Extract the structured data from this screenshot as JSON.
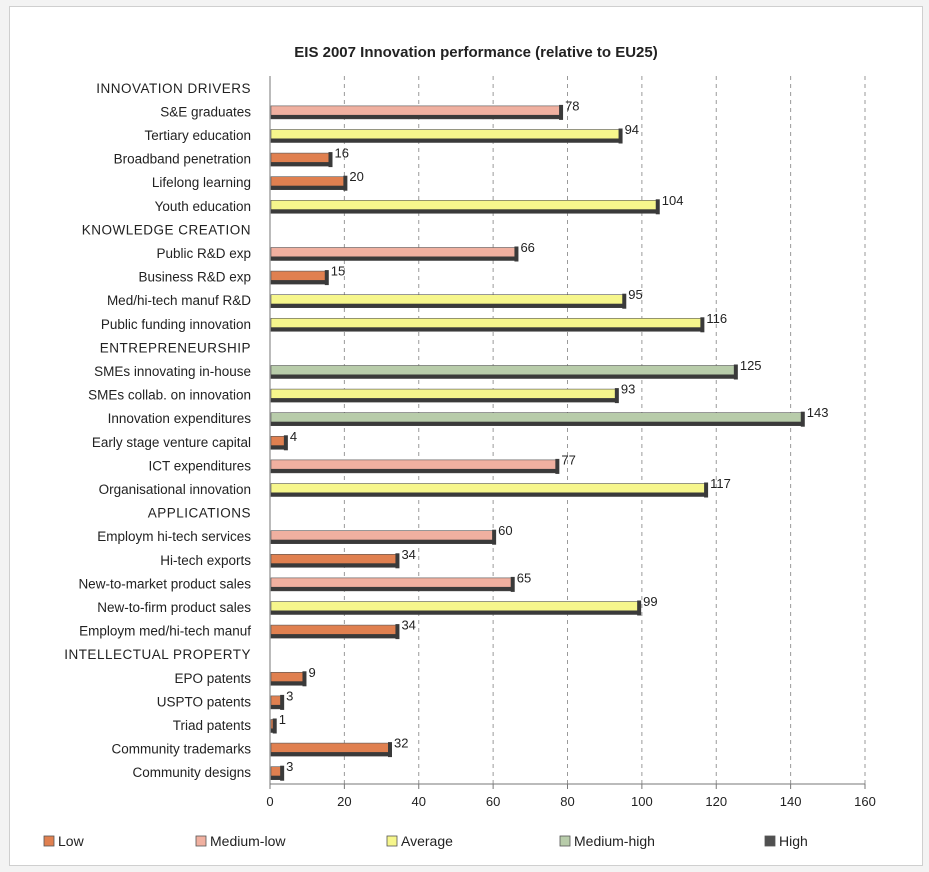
{
  "chart_data": {
    "type": "bar",
    "orientation": "horizontal",
    "title": "EIS 2007 Innovation performance (relative to EU25)",
    "xlim": [
      0,
      160
    ],
    "xticks": [
      0,
      20,
      40,
      60,
      80,
      100,
      120,
      140,
      160
    ],
    "grid": "vertical dashed",
    "legend_placement": "bottom",
    "legend": [
      {
        "key": "low",
        "label": "Low"
      },
      {
        "key": "medium-low",
        "label": "Medium-low"
      },
      {
        "key": "average",
        "label": "Average"
      },
      {
        "key": "medium-high",
        "label": "Medium-high"
      },
      {
        "key": "high",
        "label": "High"
      }
    ],
    "colors": {
      "low": "#e08050",
      "medium-low": "#f0b0a0",
      "average": "#f6f68c",
      "medium-high": "#b8ccaa",
      "high": "#505050"
    },
    "rows": [
      {
        "type": "section",
        "label": "INNOVATION DRIVERS"
      },
      {
        "type": "bar",
        "label": "S&E graduates",
        "value": 78,
        "value_label": "78",
        "level": "medium-low"
      },
      {
        "type": "bar",
        "label": "Tertiary education",
        "value": 94,
        "value_label": "94",
        "level": "average"
      },
      {
        "type": "bar",
        "label": "Broadband penetration",
        "value": 16,
        "value_label": "16",
        "level": "low"
      },
      {
        "type": "bar",
        "label": "Lifelong learning",
        "value": 20,
        "value_label": "20",
        "level": "low"
      },
      {
        "type": "bar",
        "label": "Youth education",
        "value": 104,
        "value_label": "104",
        "level": "average"
      },
      {
        "type": "section",
        "label": "KNOWLEDGE CREATION"
      },
      {
        "type": "bar",
        "label": "Public R&D exp",
        "value": 66,
        "value_label": "66",
        "level": "medium-low"
      },
      {
        "type": "bar",
        "label": "Business R&D exp",
        "value": 15,
        "value_label": "15",
        "level": "low"
      },
      {
        "type": "bar",
        "label": "Med/hi-tech manuf R&D",
        "value": 95,
        "value_label": "95",
        "level": "average"
      },
      {
        "type": "bar",
        "label": "Public funding innovation",
        "value": 116,
        "value_label": "116",
        "level": "average"
      },
      {
        "type": "section",
        "label": "ENTREPRENEURSHIP"
      },
      {
        "type": "bar",
        "label": "SMEs innovating in-house",
        "value": 125,
        "value_label": "125",
        "level": "medium-high"
      },
      {
        "type": "bar",
        "label": "SMEs collab. on innovation",
        "value": 93,
        "value_label": "93",
        "level": "average"
      },
      {
        "type": "bar",
        "label": "Innovation expenditures",
        "value": 143,
        "value_label": "143",
        "level": "medium-high"
      },
      {
        "type": "bar",
        "label": "Early stage venture capital",
        "value": 4,
        "value_label": "4",
        "level": "low"
      },
      {
        "type": "bar",
        "label": "ICT expenditures",
        "value": 77,
        "value_label": "77",
        "level": "medium-low"
      },
      {
        "type": "bar",
        "label": "Organisational innovation",
        "value": 117,
        "value_label": "117",
        "level": "average"
      },
      {
        "type": "section",
        "label": "APPLICATIONS"
      },
      {
        "type": "bar",
        "label": "Employm hi-tech services",
        "value": 60,
        "value_label": "60",
        "level": "medium-low"
      },
      {
        "type": "bar",
        "label": "Hi-tech exports",
        "value": 34,
        "value_label": "34",
        "level": "low"
      },
      {
        "type": "bar",
        "label": "New-to-market product sales",
        "value": 65,
        "value_label": "65",
        "level": "medium-low"
      },
      {
        "type": "bar",
        "label": "New-to-firm product sales",
        "value": 99,
        "value_label": "99",
        "level": "average"
      },
      {
        "type": "bar",
        "label": "Employm med/hi-tech manuf",
        "value": 34,
        "value_label": "34",
        "level": "low"
      },
      {
        "type": "section",
        "label": "INTELLECTUAL PROPERTY"
      },
      {
        "type": "bar",
        "label": "EPO patents",
        "value": 9,
        "value_label": "9",
        "level": "low"
      },
      {
        "type": "bar",
        "label": "USPTO patents",
        "value": 3,
        "value_label": "3",
        "level": "low"
      },
      {
        "type": "bar",
        "label": "Triad patents",
        "value": 1,
        "value_label": "1",
        "level": "low"
      },
      {
        "type": "bar",
        "label": "Community trademarks",
        "value": 32,
        "value_label": "32",
        "level": "low"
      },
      {
        "type": "bar",
        "label": "Community designs",
        "value": 3,
        "value_label": "3",
        "level": "low"
      }
    ]
  }
}
